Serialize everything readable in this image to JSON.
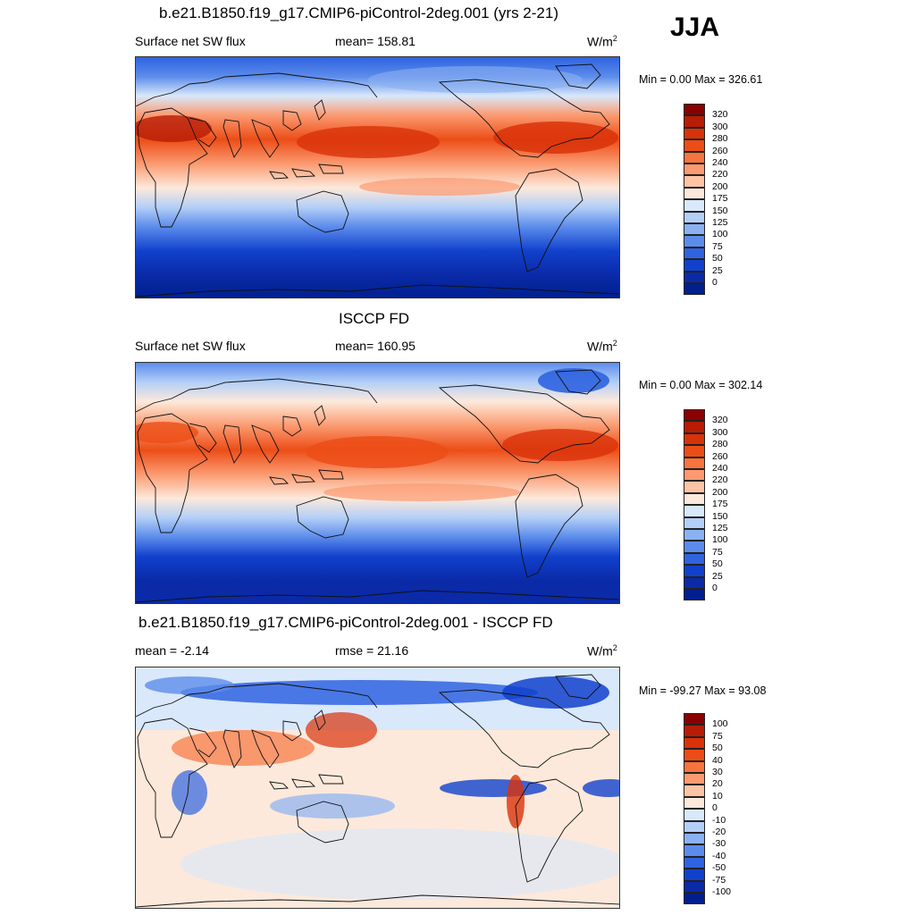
{
  "season": "JJA",
  "panels": [
    {
      "title": "b.e21.B1850.f19_g17.CMIP6-piControl-2deg.001 (yrs 2-21)",
      "left_label": "Surface net SW flux",
      "center_label": "mean= 158.81",
      "units": "W/m",
      "units_sup": "2",
      "minmax": "Min =   0.00 Max = 326.61",
      "colorbar_labels": [
        "320",
        "300",
        "280",
        "260",
        "240",
        "220",
        "200",
        "175",
        "150",
        "125",
        "100",
        "75",
        "50",
        "25",
        "0"
      ],
      "colorbar_colors": [
        "#8b0000",
        "#b81c05",
        "#d9320a",
        "#ec4d17",
        "#f7743e",
        "#fb9a70",
        "#fdc3a5",
        "#fde9db",
        "#d9e8fa",
        "#b3cff7",
        "#8ab1f2",
        "#5c8ceb",
        "#2f63e0",
        "#1141cc",
        "#0a2aa8",
        "#001f8e"
      ]
    },
    {
      "title": "ISCCP FD",
      "left_label": "Surface net SW flux",
      "center_label": "mean= 160.95",
      "units": "W/m",
      "units_sup": "2",
      "minmax": "Min =   0.00 Max = 302.14",
      "colorbar_labels": [
        "320",
        "300",
        "280",
        "260",
        "240",
        "220",
        "200",
        "175",
        "150",
        "125",
        "100",
        "75",
        "50",
        "25",
        "0"
      ],
      "colorbar_colors": [
        "#8b0000",
        "#b81c05",
        "#d9320a",
        "#ec4d17",
        "#f7743e",
        "#fb9a70",
        "#fdc3a5",
        "#fde9db",
        "#d9e8fa",
        "#b3cff7",
        "#8ab1f2",
        "#5c8ceb",
        "#2f63e0",
        "#1141cc",
        "#0a2aa8",
        "#001f8e"
      ]
    },
    {
      "title": "b.e21.B1850.f19_g17.CMIP6-piControl-2deg.001 - ISCCP FD",
      "left_label": "mean =  -2.14",
      "center_label": "rmse =  21.16",
      "units": "W/m",
      "units_sup": "2",
      "minmax": "Min = -99.27 Max =  93.08",
      "colorbar_labels": [
        "100",
        "75",
        "50",
        "40",
        "30",
        "20",
        "10",
        "0",
        "-10",
        "-20",
        "-30",
        "-40",
        "-50",
        "-75",
        "-100"
      ],
      "colorbar_colors": [
        "#8b0000",
        "#b81c05",
        "#d9320a",
        "#ec4d17",
        "#f7743e",
        "#fb9a70",
        "#fdc3a5",
        "#fde9db",
        "#d9e8fa",
        "#b3cff7",
        "#8ab1f2",
        "#5c8ceb",
        "#2f63e0",
        "#1141cc",
        "#0a2aa8",
        "#001f8e"
      ]
    }
  ]
}
